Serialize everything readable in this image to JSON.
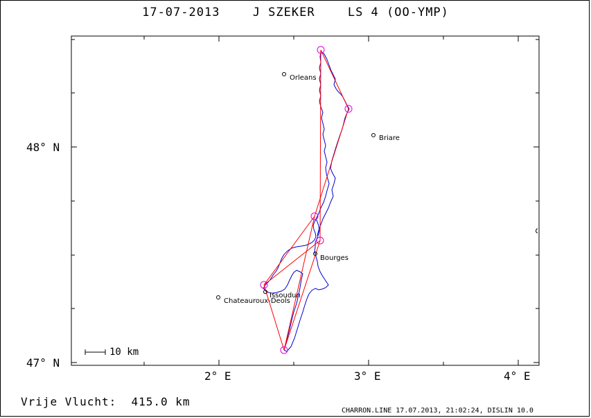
{
  "title": {
    "date": "17-07-2013",
    "pilot": "J SZEKER",
    "glider": "LS 4 (OO-YMP)"
  },
  "axes": {
    "y_labels": [
      "48° N",
      "47° N"
    ],
    "x_labels": [
      "2° E",
      "3° E",
      "4° E"
    ]
  },
  "cities": [
    {
      "name": "Orleans"
    },
    {
      "name": "Briare"
    },
    {
      "name": "Bourges"
    },
    {
      "name": "Issoudun"
    },
    {
      "name": "Chateauroux-Deols"
    }
  ],
  "scale": {
    "label": "10 km"
  },
  "footer": {
    "distance_label": "Vrije Vlucht:",
    "distance_value": "415.0 km",
    "info": "CHARRON.LINE 17.07.2013, 21:02:24, DISLIN 10.0"
  },
  "colors": {
    "track": "#0000cc",
    "task": "#ff0000",
    "turnpoint": "#e000e0",
    "frame": "#000000"
  }
}
